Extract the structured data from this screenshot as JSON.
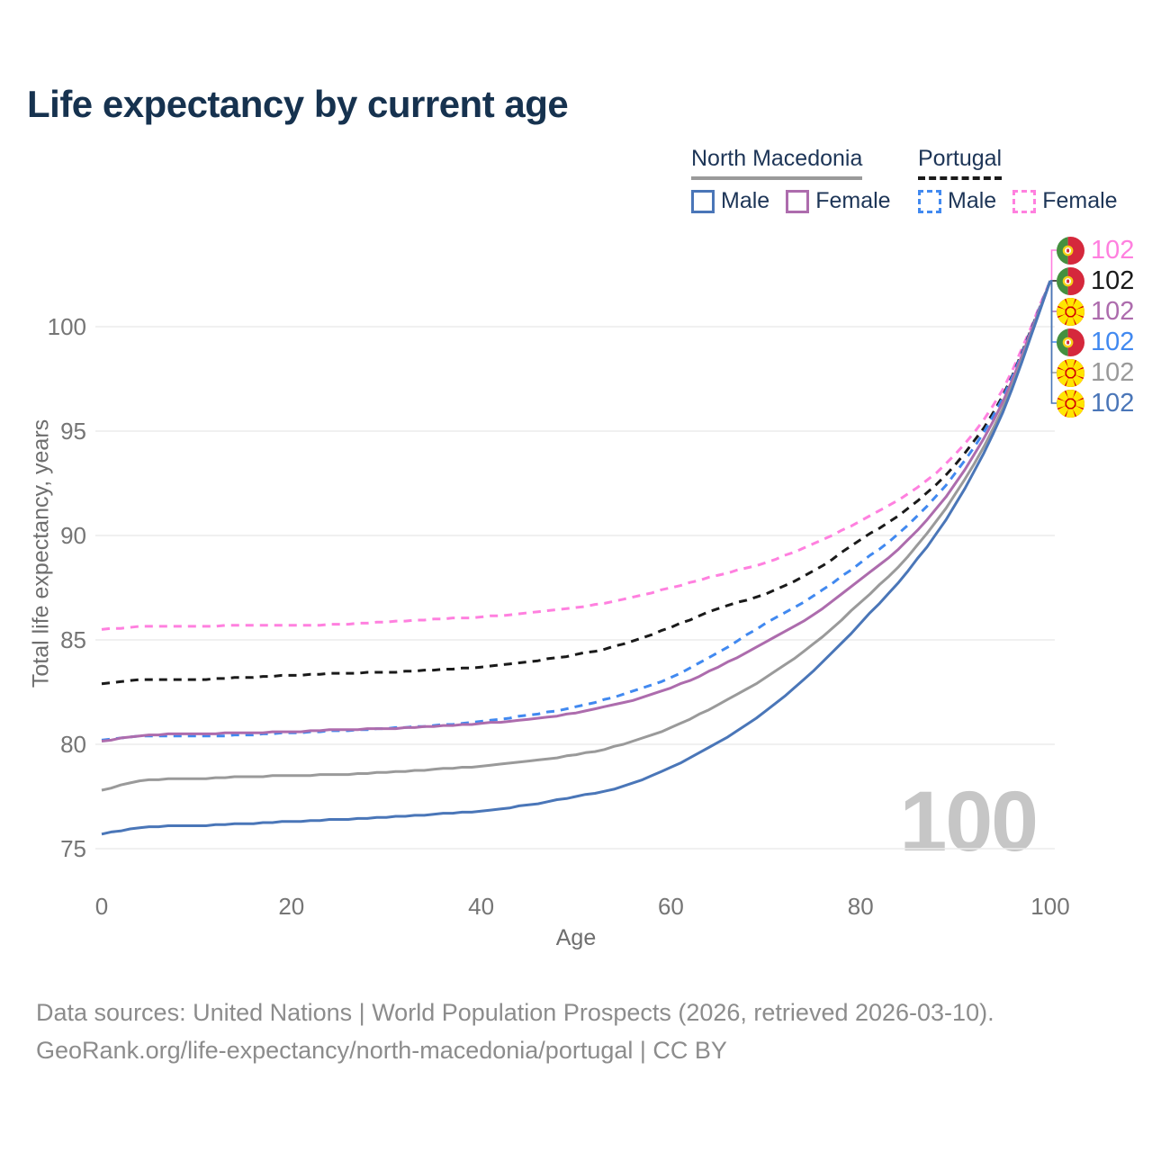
{
  "title": "Life expectancy by current age",
  "watermark": "100",
  "legend": {
    "groups": [
      {
        "name": "North Macedonia",
        "line_style": "solid",
        "color": "#9a9a9a",
        "items": [
          {
            "label": "Male",
            "color": "#4a76b8",
            "dashed": false
          },
          {
            "label": "Female",
            "color": "#ad6cad",
            "dashed": false
          }
        ]
      },
      {
        "name": "Portugal",
        "line_style": "dashed",
        "color": "#1a1a1a",
        "items": [
          {
            "label": "Male",
            "color": "#4189f0",
            "dashed": true
          },
          {
            "label": "Female",
            "color": "#ff80df",
            "dashed": true
          }
        ]
      }
    ]
  },
  "chart_data": {
    "type": "line",
    "title": "Life expectancy by current age",
    "xlabel": "Age",
    "ylabel": "Total life expectancy, years",
    "xlim": [
      0,
      100
    ],
    "ylim": [
      75,
      102.5
    ],
    "xticks": [
      0,
      20,
      40,
      60,
      80,
      100
    ],
    "yticks": [
      75,
      80,
      85,
      90,
      95,
      100
    ],
    "grid": "horizontal-only",
    "legend_position": "top-right",
    "x": [
      0,
      5,
      10,
      15,
      20,
      25,
      30,
      35,
      40,
      45,
      50,
      55,
      60,
      65,
      70,
      75,
      80,
      85,
      90,
      95,
      100
    ],
    "series": [
      {
        "name": "Portugal Female",
        "country": "Portugal",
        "sex": "Female",
        "color": "#ff80df",
        "dashed": true,
        "flag": "portugal",
        "end_label": "102",
        "values": [
          85.5,
          85.65,
          85.65,
          85.7,
          85.7,
          85.75,
          85.85,
          86.0,
          86.1,
          86.3,
          86.55,
          86.95,
          87.5,
          88.1,
          88.7,
          89.6,
          90.7,
          92.0,
          93.9,
          97.0,
          102.2
        ]
      },
      {
        "name": "Portugal Both sexes",
        "country": "Portugal",
        "sex": "Both",
        "color": "#1a1a1a",
        "dashed": true,
        "flag": "portugal",
        "end_label": "102",
        "values": [
          82.9,
          83.1,
          83.1,
          83.2,
          83.3,
          83.4,
          83.45,
          83.55,
          83.7,
          83.95,
          84.3,
          84.8,
          85.6,
          86.5,
          87.2,
          88.3,
          89.8,
          91.3,
          93.4,
          96.7,
          102.2
        ]
      },
      {
        "name": "North Macedonia Female",
        "country": "North Macedonia",
        "sex": "Female",
        "color": "#ad6cad",
        "dashed": false,
        "flag": "north-macedonia",
        "end_label": "102",
        "values": [
          80.15,
          80.45,
          80.5,
          80.55,
          80.6,
          80.7,
          80.75,
          80.85,
          81.0,
          81.2,
          81.5,
          82.0,
          82.7,
          83.7,
          84.9,
          86.2,
          87.9,
          89.8,
          92.5,
          96.4,
          102.2
        ]
      },
      {
        "name": "Portugal Male",
        "country": "Portugal",
        "sex": "Male",
        "color": "#4189f0",
        "dashed": true,
        "flag": "portugal",
        "end_label": "102",
        "values": [
          80.2,
          80.4,
          80.4,
          80.45,
          80.55,
          80.65,
          80.75,
          80.9,
          81.1,
          81.4,
          81.8,
          82.4,
          83.2,
          84.4,
          85.8,
          87.1,
          88.7,
          90.5,
          93.0,
          96.6,
          102.2
        ]
      },
      {
        "name": "North Macedonia Both sexes",
        "country": "North Macedonia",
        "sex": "Both",
        "color": "#9a9a9a",
        "dashed": false,
        "flag": "north-macedonia",
        "end_label": "102",
        "values": [
          77.8,
          78.3,
          78.35,
          78.45,
          78.5,
          78.55,
          78.65,
          78.8,
          78.95,
          79.2,
          79.5,
          80.0,
          80.8,
          81.9,
          83.2,
          84.8,
          86.8,
          89.0,
          92.0,
          96.1,
          102.2
        ]
      },
      {
        "name": "North Macedonia Male",
        "country": "North Macedonia",
        "sex": "Male",
        "color": "#4a76b8",
        "dashed": false,
        "flag": "north-macedonia",
        "end_label": "102",
        "values": [
          75.7,
          76.05,
          76.1,
          76.2,
          76.3,
          76.4,
          76.5,
          76.65,
          76.8,
          77.1,
          77.5,
          78.0,
          78.9,
          80.1,
          81.6,
          83.5,
          85.8,
          88.3,
          91.5,
          95.9,
          102.2
        ]
      }
    ]
  },
  "footer": {
    "line1": "Data sources: United Nations | World Population Prospects (2026, retrieved 2026-03-10).",
    "line2": "GeoRank.org/life-expectancy/north-macedonia/portugal | CC BY"
  }
}
